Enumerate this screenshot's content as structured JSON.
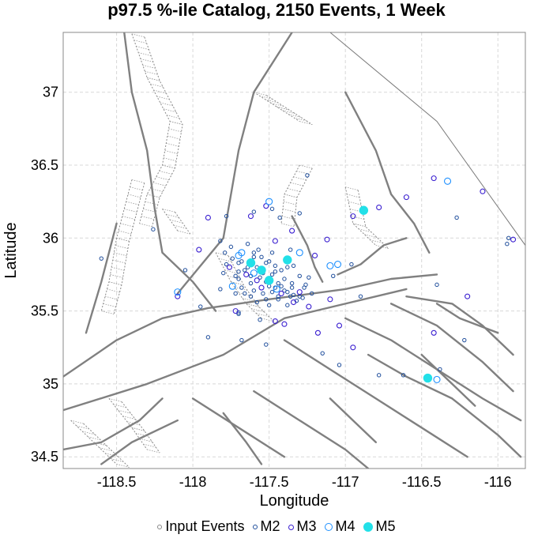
{
  "chart_data": {
    "type": "scatter",
    "title": "p97.5 %-ile Catalog, 2150 Events, 1 Week",
    "xlabel": "Longitude",
    "ylabel": "Latitude",
    "xlim": [
      -118.85,
      -115.82
    ],
    "ylim": [
      34.42,
      37.41
    ],
    "x_ticks": [
      "-118.5",
      "-118",
      "-117.5",
      "-117",
      "-116.5",
      "-116"
    ],
    "y_ticks": [
      "34.5",
      "35",
      "35.5",
      "36",
      "36.5",
      "37"
    ],
    "grid": true,
    "legend_position": "bottom",
    "legend": [
      {
        "name": "Input Events",
        "color": "#888888",
        "style": "small-hollow"
      },
      {
        "name": "M2",
        "color": "#1f4e9c",
        "style": "hollow"
      },
      {
        "name": "M3",
        "color": "#3a1fd0",
        "style": "hollow"
      },
      {
        "name": "M4",
        "color": "#1e90ff",
        "style": "hollow"
      },
      {
        "name": "M5",
        "color": "#22e0e8",
        "style": "filled"
      }
    ],
    "series": [
      {
        "name": "M5",
        "points": [
          [
            -117.62,
            35.83
          ],
          [
            -117.55,
            35.78
          ],
          [
            -117.5,
            35.71
          ],
          [
            -117.38,
            35.85
          ],
          [
            -116.88,
            36.19
          ],
          [
            -116.46,
            35.04
          ]
        ]
      },
      {
        "name": "M4",
        "points": [
          [
            -117.7,
            35.88
          ],
          [
            -117.6,
            35.76
          ],
          [
            -117.45,
            35.65
          ],
          [
            -117.5,
            36.25
          ],
          [
            -117.3,
            35.9
          ],
          [
            -117.1,
            35.81
          ],
          [
            -117.05,
            35.82
          ],
          [
            -116.33,
            36.39
          ],
          [
            -116.4,
            35.03
          ],
          [
            -118.1,
            35.63
          ],
          [
            -117.74,
            35.67
          ],
          [
            -117.68,
            35.9
          ]
        ]
      },
      {
        "name": "M3",
        "points": [
          [
            -117.9,
            36.14
          ],
          [
            -117.62,
            36.15
          ],
          [
            -117.52,
            36.22
          ],
          [
            -117.35,
            36.05
          ],
          [
            -117.2,
            35.88
          ],
          [
            -117.12,
            35.99
          ],
          [
            -116.95,
            36.15
          ],
          [
            -116.78,
            36.21
          ],
          [
            -116.6,
            36.28
          ],
          [
            -116.42,
            36.41
          ],
          [
            -116.1,
            36.32
          ],
          [
            -115.9,
            35.99
          ],
          [
            -117.96,
            35.92
          ],
          [
            -118.1,
            35.6
          ],
          [
            -117.72,
            35.5
          ],
          [
            -117.46,
            35.43
          ],
          [
            -117.4,
            35.41
          ],
          [
            -117.1,
            35.58
          ],
          [
            -116.95,
            35.25
          ],
          [
            -116.2,
            35.6
          ],
          [
            -116.42,
            35.35
          ],
          [
            -117.18,
            35.35
          ],
          [
            -117.04,
            35.4
          ],
          [
            -117.46,
            35.98
          ],
          [
            -117.65,
            35.75
          ],
          [
            -117.55,
            35.66
          ],
          [
            -117.42,
            35.62
          ],
          [
            -117.34,
            35.56
          ],
          [
            -117.58,
            35.71
          ],
          [
            -117.3,
            35.63
          ],
          [
            -117.76,
            35.8
          ],
          [
            -117.24,
            35.53
          ]
        ]
      },
      {
        "name": "M2",
        "points": [
          [
            -118.6,
            35.86
          ],
          [
            -118.26,
            36.06
          ],
          [
            -118.05,
            35.78
          ],
          [
            -117.82,
            35.65
          ],
          [
            -117.95,
            35.53
          ],
          [
            -117.7,
            35.48
          ],
          [
            -117.68,
            35.3
          ],
          [
            -117.7,
            35.49
          ],
          [
            -117.9,
            35.32
          ],
          [
            -117.52,
            35.27
          ],
          [
            -117.56,
            35.44
          ],
          [
            -117.15,
            35.21
          ],
          [
            -117.04,
            35.13
          ],
          [
            -116.78,
            35.06
          ],
          [
            -116.62,
            35.06
          ],
          [
            -116.38,
            35.1
          ],
          [
            -116.22,
            35.3
          ],
          [
            -117.08,
            35.74
          ],
          [
            -116.9,
            35.6
          ],
          [
            -116.96,
            35.82
          ],
          [
            -116.4,
            35.68
          ],
          [
            -116.27,
            36.14
          ],
          [
            -115.93,
            36.0
          ],
          [
            -115.94,
            35.96
          ],
          [
            -117.3,
            36.17
          ],
          [
            -117.25,
            36.43
          ],
          [
            -117.48,
            36.2
          ],
          [
            -117.82,
            35.98
          ],
          [
            -117.78,
            36.15
          ],
          [
            -117.6,
            36.18
          ],
          [
            -117.43,
            36.14
          ],
          [
            -117.64,
            35.96
          ],
          [
            -117.57,
            35.92
          ],
          [
            -117.48,
            35.9
          ],
          [
            -117.36,
            35.92
          ],
          [
            -117.68,
            35.84
          ],
          [
            -117.7,
            35.72
          ],
          [
            -117.62,
            35.69
          ],
          [
            -117.54,
            35.62
          ],
          [
            -117.52,
            35.58
          ],
          [
            -117.44,
            35.58
          ],
          [
            -117.38,
            35.54
          ],
          [
            -117.46,
            35.77
          ],
          [
            -117.4,
            35.72
          ],
          [
            -117.35,
            35.69
          ],
          [
            -117.3,
            35.6
          ],
          [
            -117.27,
            35.66
          ],
          [
            -117.24,
            35.73
          ],
          [
            -117.66,
            35.62
          ],
          [
            -117.72,
            35.62
          ],
          [
            -117.79,
            35.9
          ],
          [
            -117.75,
            35.94
          ],
          [
            -117.6,
            35.87
          ],
          [
            -117.52,
            35.83
          ],
          [
            -117.5,
            35.84
          ],
          [
            -117.48,
            35.75
          ],
          [
            -117.44,
            35.69
          ],
          [
            -117.4,
            35.64
          ],
          [
            -117.36,
            35.6
          ],
          [
            -117.32,
            35.57
          ],
          [
            -117.58,
            35.8
          ],
          [
            -117.64,
            35.8
          ],
          [
            -117.7,
            35.83
          ],
          [
            -117.74,
            35.86
          ],
          [
            -117.56,
            35.73
          ],
          [
            -117.52,
            35.7
          ],
          [
            -117.46,
            35.66
          ],
          [
            -117.42,
            35.67
          ],
          [
            -117.38,
            35.63
          ],
          [
            -117.34,
            35.61
          ],
          [
            -117.28,
            35.59
          ],
          [
            -117.6,
            35.9
          ],
          [
            -117.55,
            35.87
          ],
          [
            -117.66,
            35.78
          ],
          [
            -117.5,
            35.67
          ],
          [
            -117.44,
            35.6
          ],
          [
            -117.48,
            35.63
          ],
          [
            -117.62,
            35.74
          ],
          [
            -117.7,
            35.77
          ],
          [
            -117.78,
            35.82
          ],
          [
            -117.72,
            35.74
          ],
          [
            -117.8,
            35.76
          ],
          [
            -117.34,
            35.81
          ],
          [
            -117.38,
            35.8
          ],
          [
            -117.3,
            35.74
          ],
          [
            -117.26,
            35.68
          ],
          [
            -117.22,
            35.62
          ],
          [
            -117.5,
            35.54
          ],
          [
            -117.58,
            35.56
          ],
          [
            -117.62,
            35.6
          ],
          [
            -117.68,
            35.66
          ],
          [
            -117.54,
            35.76
          ],
          [
            -117.46,
            35.81
          ],
          [
            -117.42,
            35.78
          ],
          [
            -117.6,
            35.64
          ],
          [
            -117.35,
            35.66
          ]
        ]
      }
    ]
  }
}
